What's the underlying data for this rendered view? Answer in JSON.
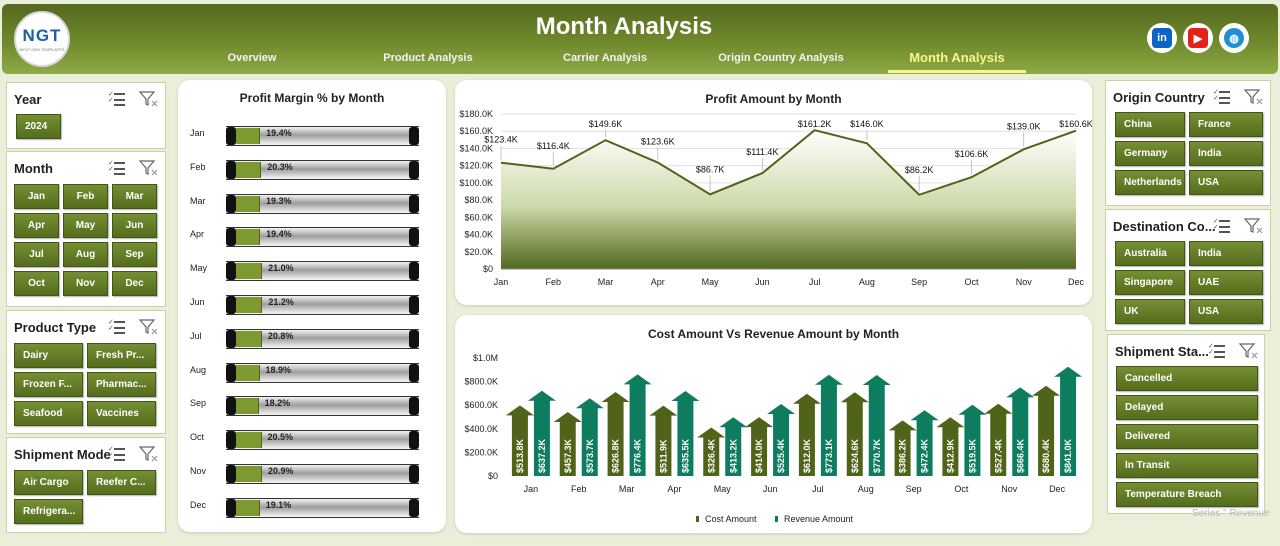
{
  "header": {
    "title": "Month Analysis",
    "logo_text": "NGT",
    "logo_sub": "NEXT GEN TEMPLATES",
    "tabs": [
      {
        "label": "Overview"
      },
      {
        "label": "Product Analysis"
      },
      {
        "label": "Carrier Analysis"
      },
      {
        "label": "Origin Country Analysis"
      },
      {
        "label": "Month Analysis"
      }
    ],
    "active_tab": "Month Analysis",
    "social": [
      {
        "icon": "linkedin-icon",
        "text": "in",
        "color": "#0a66c2"
      },
      {
        "icon": "youtube-icon",
        "text": "▶",
        "color": "#e62117"
      },
      {
        "icon": "globe-icon",
        "text": "◍",
        "color": "#1f8fd8"
      }
    ]
  },
  "slicers": {
    "year": {
      "title": "Year",
      "items": [
        "2024"
      ]
    },
    "month": {
      "title": "Month",
      "items": [
        "Jan",
        "Feb",
        "Mar",
        "Apr",
        "May",
        "Jun",
        "Jul",
        "Aug",
        "Sep",
        "Oct",
        "Nov",
        "Dec"
      ]
    },
    "product_type": {
      "title": "Product Type",
      "items": [
        "Dairy",
        "Fresh Pr...",
        "Frozen F...",
        "Pharmac...",
        "Seafood",
        "Vaccines"
      ]
    },
    "shipment_mode": {
      "title": "Shipment Mode",
      "items": [
        "Air Cargo",
        "Reefer C...",
        "Refrigera..."
      ]
    },
    "origin_country": {
      "title": "Origin Country",
      "items": [
        "China",
        "France",
        "Germany",
        "India",
        "Netherlands",
        "USA"
      ]
    },
    "destination_country": {
      "title": "Destination Co...",
      "items": [
        "Australia",
        "India",
        "Singapore",
        "UAE",
        "UK",
        "USA"
      ]
    },
    "shipment_status": {
      "title": "Shipment Sta...",
      "items": [
        "Cancelled",
        "Delayed",
        "Delivered",
        "In Transit",
        "Temperature Breach"
      ]
    }
  },
  "watermark": "Series \" Revenue",
  "colors": {
    "accent": "#6f8a2c",
    "cost": "#4f6419",
    "revenue": "#0e7c5e"
  },
  "chart_data": [
    {
      "type": "bar",
      "title": "Profit Margin % by Month",
      "categories": [
        "Jan",
        "Feb",
        "Mar",
        "Apr",
        "May",
        "Jun",
        "Jul",
        "Aug",
        "Sep",
        "Oct",
        "Nov",
        "Dec"
      ],
      "values": [
        19.4,
        20.3,
        19.3,
        19.4,
        21.0,
        21.2,
        20.8,
        18.9,
        18.2,
        20.5,
        20.9,
        19.1
      ],
      "labels": [
        "19.4%",
        "20.3%",
        "19.3%",
        "19.4%",
        "21.0%",
        "21.2%",
        "20.8%",
        "18.9%",
        "18.2%",
        "20.5%",
        "20.9%",
        "19.1%"
      ],
      "orientation": "horizontal",
      "xlim": [
        0,
        100
      ]
    },
    {
      "type": "area",
      "title": "Profit Amount by Month",
      "categories": [
        "Jan",
        "Feb",
        "Mar",
        "Apr",
        "May",
        "Jun",
        "Jul",
        "Aug",
        "Sep",
        "Oct",
        "Nov",
        "Dec"
      ],
      "values": [
        123.4,
        116.4,
        149.6,
        123.6,
        86.7,
        111.4,
        161.2,
        146.0,
        86.2,
        106.6,
        139.0,
        160.6
      ],
      "labels": [
        "$123.4K",
        "$116.4K",
        "$149.6K",
        "$123.6K",
        "$86.7K",
        "$111.4K",
        "$161.2K",
        "$146.0K",
        "$86.2K",
        "$106.6K",
        "$139.0K",
        "$160.6K"
      ],
      "ylim": [
        0,
        180
      ],
      "yticks": [
        "$0",
        "$20.0K",
        "$40.0K",
        "$60.0K",
        "$80.0K",
        "$100.0K",
        "$120.0K",
        "$140.0K",
        "$160.0K",
        "$180.0K"
      ],
      "grid": true
    },
    {
      "type": "bar",
      "title": "Cost Amount Vs Revenue Amount by Month",
      "categories": [
        "Jan",
        "Feb",
        "Mar",
        "Apr",
        "May",
        "Jun",
        "Jul",
        "Aug",
        "Sep",
        "Oct",
        "Nov",
        "Dec"
      ],
      "series": [
        {
          "name": "Cost Amount",
          "values": [
            513.8,
            457.3,
            626.8,
            511.9,
            326.4,
            414.0,
            612.0,
            624.6,
            386.2,
            412.9,
            527.4,
            680.4
          ],
          "labels": [
            "$513.8K",
            "$457.3K",
            "$626.8K",
            "$511.9K",
            "$326.4K",
            "$414.0K",
            "$612.0K",
            "$624.6K",
            "$386.2K",
            "$412.9K",
            "$527.4K",
            "$680.4K"
          ]
        },
        {
          "name": "Revenue Amount",
          "values": [
            637.2,
            573.7,
            776.4,
            635.5,
            413.2,
            525.4,
            773.1,
            770.7,
            472.4,
            519.5,
            666.4,
            841.0
          ],
          "labels": [
            "$637.2K",
            "$573.7K",
            "$776.4K",
            "$635.5K",
            "$413.2K",
            "$525.4K",
            "$773.1K",
            "$770.7K",
            "$472.4K",
            "$519.5K",
            "$666.4K",
            "$841.0K"
          ]
        }
      ],
      "ylim": [
        0,
        1000
      ],
      "yticks": [
        "$0",
        "$200.0K",
        "$400.0K",
        "$600.0K",
        "$800.0K",
        "$1.0M"
      ],
      "legend": "bottom"
    }
  ]
}
